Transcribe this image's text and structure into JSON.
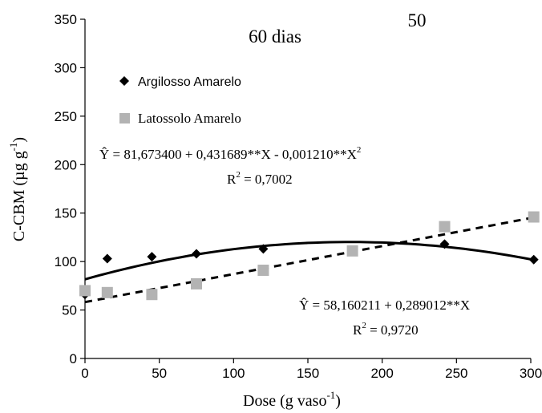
{
  "chart_data": {
    "type": "scatter",
    "title": "60 dias",
    "panel_label": "50",
    "xlabel": "Dose (g vaso",
    "xlabel_sup": "-1",
    "xlabel_suffix": ")",
    "ylabel": "C-CBM (µg g",
    "ylabel_sup": "-1",
    "ylabel_suffix": ")",
    "xlim": [
      0,
      300
    ],
    "ylim": [
      0,
      350
    ],
    "x_ticks": [
      0,
      50,
      100,
      150,
      200,
      250,
      300
    ],
    "y_ticks": [
      0,
      50,
      100,
      150,
      200,
      250,
      300,
      350
    ],
    "grid": false,
    "legend_position": "top-left",
    "series": [
      {
        "name": "Argilosso Amarelo",
        "marker": "diamond",
        "color": "#000000",
        "x": [
          0,
          15,
          45,
          75,
          120,
          242,
          302
        ],
        "y": [
          66,
          103,
          105,
          108,
          113,
          118,
          102
        ],
        "fit": {
          "kind": "quadratic",
          "a": 81.6734,
          "b": 0.431689,
          "c": -0.00121,
          "line_style": "solid"
        },
        "equation": "Ŷ = 81,673400 + 0,431689**X - 0,001210**X",
        "equation_sup": "2",
        "r2_label": "R",
        "r2_sup": "2",
        "r2_value": " = 0,7002"
      },
      {
        "name": "Latossolo Amarelo",
        "marker": "square",
        "color": "#b3b3b3",
        "x": [
          0,
          15,
          45,
          75,
          120,
          180,
          242,
          302
        ],
        "y": [
          70,
          68,
          66,
          77,
          91,
          111,
          136,
          146
        ],
        "fit": {
          "kind": "linear",
          "a": 58.160211,
          "b": 0.289012,
          "line_style": "dashed"
        },
        "equation": "Ŷ = 58,160211 + 0,289012**X",
        "r2_label": "R",
        "r2_sup": "2",
        "r2_value": " = 0,9720"
      }
    ]
  }
}
